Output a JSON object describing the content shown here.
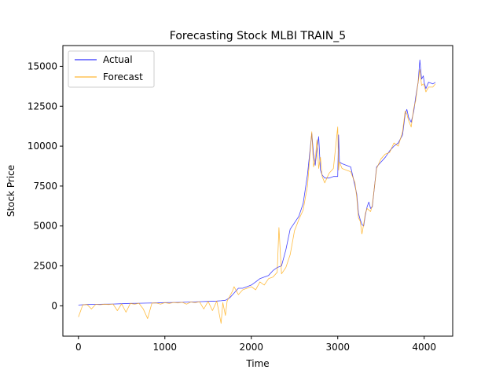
{
  "chart_data": {
    "type": "line",
    "title": "Forecasting Stock MLBI TRAIN_5",
    "xlabel": "Time",
    "ylabel": "Stock Price",
    "xlim": [
      -180,
      4330
    ],
    "ylim": [
      -1900,
      16300
    ],
    "xticks": [
      0,
      1000,
      2000,
      3000,
      4000
    ],
    "yticks": [
      0,
      2500,
      5000,
      7500,
      10000,
      12500,
      15000
    ],
    "grid": false,
    "legend_position": "top-left",
    "series": [
      {
        "name": "Actual",
        "color": "#0000ff",
        "x": [
          0,
          100,
          200,
          300,
          400,
          500,
          600,
          700,
          800,
          900,
          1000,
          1100,
          1200,
          1300,
          1400,
          1500,
          1600,
          1650,
          1700,
          1750,
          1800,
          1850,
          1900,
          1950,
          2000,
          2050,
          2100,
          2150,
          2200,
          2250,
          2300,
          2350,
          2400,
          2450,
          2500,
          2550,
          2600,
          2650,
          2700,
          2720,
          2740,
          2760,
          2780,
          2800,
          2820,
          2850,
          2900,
          2950,
          3000,
          3010,
          3020,
          3050,
          3100,
          3150,
          3200,
          3220,
          3240,
          3260,
          3280,
          3300,
          3320,
          3340,
          3360,
          3380,
          3400,
          3450,
          3500,
          3550,
          3600,
          3650,
          3700,
          3750,
          3780,
          3800,
          3820,
          3850,
          3880,
          3900,
          3930,
          3950,
          3970,
          3990,
          4000,
          4020,
          4050,
          4100,
          4130
        ],
        "y": [
          50,
          80,
          90,
          100,
          110,
          130,
          150,
          160,
          170,
          180,
          200,
          210,
          220,
          240,
          260,
          280,
          300,
          320,
          350,
          500,
          800,
          1100,
          1100,
          1200,
          1300,
          1500,
          1700,
          1800,
          1900,
          2200,
          2400,
          2500,
          3500,
          4800,
          5200,
          5600,
          6400,
          8200,
          10800,
          9500,
          8800,
          9800,
          10600,
          8500,
          8200,
          8000,
          8000,
          8100,
          8100,
          10700,
          9000,
          8900,
          8800,
          8700,
          7500,
          7000,
          5800,
          5400,
          5100,
          5000,
          5700,
          6200,
          6500,
          6100,
          6200,
          8700,
          9000,
          9300,
          9700,
          10000,
          10200,
          10700,
          12000,
          12300,
          11800,
          11500,
          12200,
          13000,
          14000,
          15400,
          14200,
          14400,
          14000,
          13600,
          14000,
          13900,
          14000
        ]
      },
      {
        "name": "Forecast",
        "color": "#ffa500",
        "x": [
          0,
          50,
          100,
          150,
          200,
          250,
          300,
          350,
          400,
          450,
          500,
          550,
          600,
          650,
          700,
          750,
          800,
          850,
          900,
          950,
          1000,
          1050,
          1100,
          1150,
          1200,
          1250,
          1300,
          1350,
          1400,
          1450,
          1500,
          1550,
          1600,
          1650,
          1670,
          1700,
          1720,
          1750,
          1780,
          1800,
          1850,
          1900,
          1950,
          2000,
          2050,
          2100,
          2150,
          2200,
          2250,
          2300,
          2320,
          2350,
          2400,
          2450,
          2500,
          2550,
          2600,
          2650,
          2700,
          2720,
          2740,
          2760,
          2780,
          2800,
          2820,
          2850,
          2900,
          2950,
          3000,
          3010,
          3020,
          3050,
          3100,
          3150,
          3200,
          3220,
          3240,
          3260,
          3280,
          3300,
          3320,
          3340,
          3360,
          3380,
          3400,
          3450,
          3500,
          3550,
          3600,
          3650,
          3700,
          3750,
          3780,
          3800,
          3820,
          3850,
          3880,
          3900,
          3930,
          3950,
          3970,
          3990,
          4000,
          4020,
          4050,
          4100,
          4130
        ],
        "y": [
          -700,
          60,
          80,
          -200,
          90,
          70,
          100,
          80,
          110,
          -300,
          120,
          -400,
          150,
          100,
          160,
          -200,
          -800,
          170,
          180,
          100,
          200,
          150,
          210,
          180,
          220,
          100,
          240,
          200,
          260,
          -200,
          280,
          -300,
          300,
          -1100,
          200,
          -600,
          300,
          600,
          900,
          1200,
          700,
          1000,
          1100,
          1200,
          1000,
          1500,
          1300,
          1700,
          1800,
          2100,
          4900,
          2000,
          2400,
          3200,
          4700,
          5400,
          6000,
          7500,
          10900,
          8700,
          9100,
          10400,
          8600,
          9300,
          8100,
          7700,
          8300,
          8600,
          11200,
          8500,
          9000,
          8600,
          8500,
          8400,
          7700,
          6800,
          5500,
          5300,
          4500,
          5100,
          5800,
          6100,
          6000,
          5900,
          6300,
          8600,
          9200,
          9500,
          9600,
          10200,
          10000,
          10900,
          12200,
          12000,
          11600,
          11200,
          12400,
          12800,
          14000,
          14800,
          13800,
          13900,
          13800,
          13400,
          13700,
          13700,
          13900
        ]
      }
    ]
  }
}
